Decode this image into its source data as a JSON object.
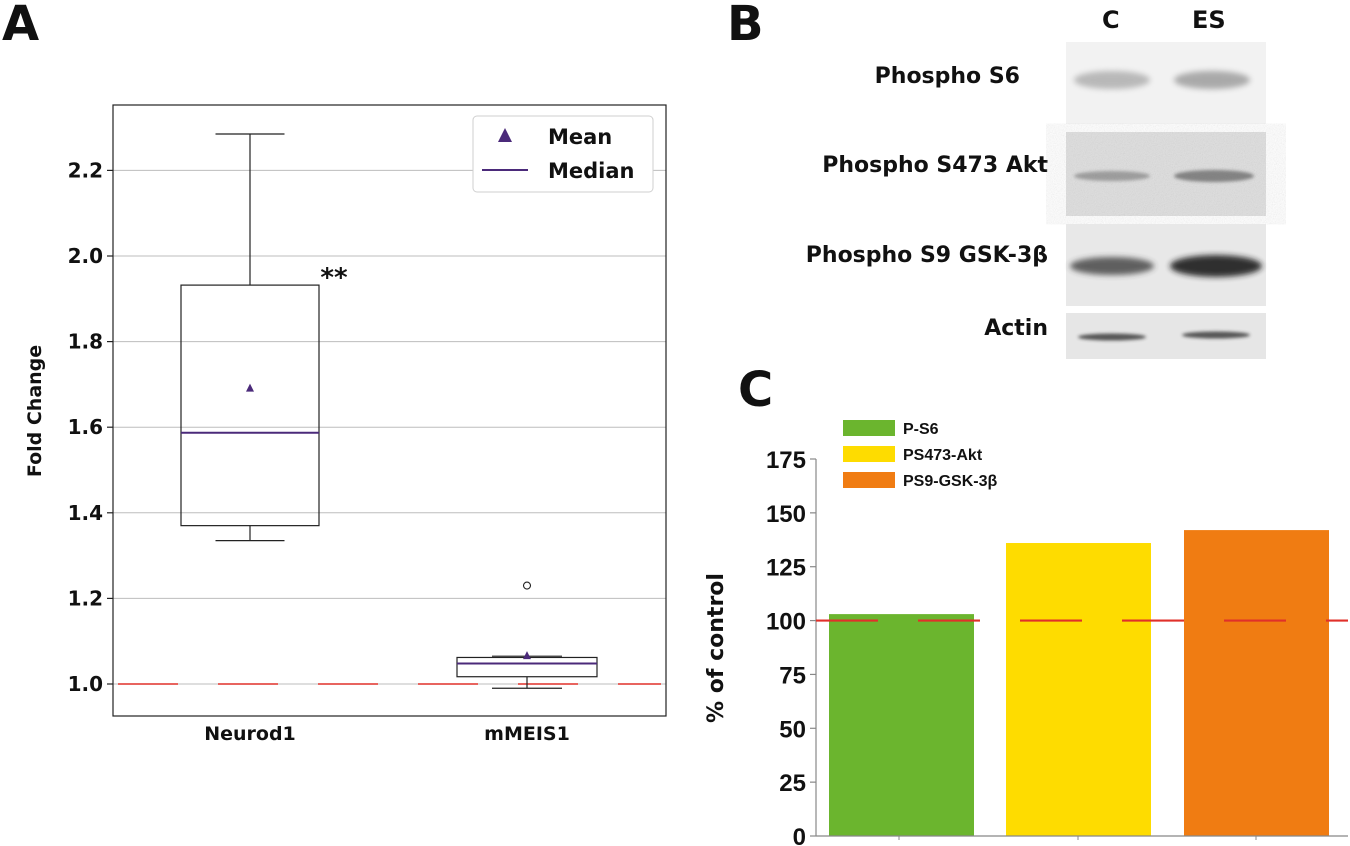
{
  "panels": {
    "a": "A",
    "b": "B",
    "c": "C"
  },
  "chart_data": [
    {
      "id": "A",
      "type": "boxplot",
      "ylabel": "Fold Change",
      "ylim": [
        0.925,
        2.36
      ],
      "yticks": [
        1.0,
        1.2,
        1.4,
        1.6,
        1.8,
        2.0,
        2.2
      ],
      "ytick_labels": [
        "1.0",
        "1.2",
        "1.4",
        "1.6",
        "1.8",
        "2.0",
        "2.2"
      ],
      "grid": true,
      "categories": [
        "Neurod1",
        "mMEIS1"
      ],
      "boxes": [
        {
          "name": "Neurod1",
          "whisker_low": 1.335,
          "q1": 1.37,
          "median": 1.587,
          "q3": 1.932,
          "whisker_high": 2.285,
          "mean": 1.69,
          "outliers": []
        },
        {
          "name": "mMEIS1",
          "whisker_low": 0.99,
          "q1": 1.017,
          "median": 1.048,
          "q3": 1.062,
          "whisker_high": 1.065,
          "mean": 1.065,
          "outliers": [
            1.23
          ]
        }
      ],
      "reference_line": 1.0,
      "significance": "**",
      "legend": {
        "mean": "Mean",
        "median": "Median",
        "placement": "top-right"
      }
    },
    {
      "id": "C",
      "type": "bar",
      "ylabel": "% of control",
      "ylim": [
        0,
        175
      ],
      "yticks": [
        0,
        25,
        50,
        75,
        100,
        125,
        150,
        175
      ],
      "ytick_labels": [
        "0",
        "25",
        "50",
        "75",
        "100",
        "125",
        "150",
        "175"
      ],
      "categories": [
        "P-S6",
        "PS473-Akt",
        "PS9-GSK-3β"
      ],
      "values": [
        103,
        136,
        142
      ],
      "colors": [
        "#6bb52e",
        "#fedc00",
        "#f07c12"
      ],
      "reference_line": 100,
      "legend": [
        "P-S6",
        "PS473-Akt",
        "PS9-GSK-3β"
      ]
    }
  ],
  "blot": {
    "lanes": [
      "C",
      "ES"
    ],
    "rows": [
      {
        "label": "Phospho S6"
      },
      {
        "label": "Phospho S473 Akt"
      },
      {
        "label": "Phospho S9 GSK-3β"
      },
      {
        "label": "Actin"
      }
    ]
  },
  "colors": {
    "purple": "#4b2a7a",
    "reference_red": "#e0302a",
    "axis": "#222222"
  }
}
